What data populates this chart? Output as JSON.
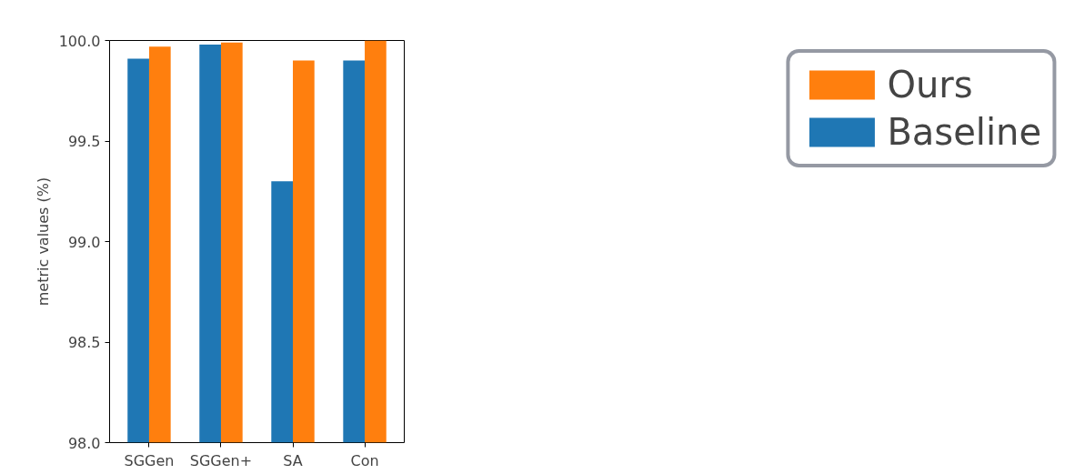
{
  "chart_data": {
    "type": "bar",
    "ylabel": "metric values (%)",
    "categories": [
      "SGGen",
      "SGGen+",
      "SA",
      "Con"
    ],
    "series": [
      {
        "name": "Baseline",
        "color": "#1f77b4",
        "values": [
          99.91,
          99.98,
          99.3,
          99.9
        ]
      },
      {
        "name": "Ours",
        "color": "#ff7f0e",
        "values": [
          99.97,
          99.99,
          99.9,
          100.0
        ]
      }
    ],
    "ylim": [
      98.0,
      100.0
    ],
    "yticks": [
      {
        "value": 98.0,
        "label": "98.0"
      },
      {
        "value": 98.5,
        "label": "98.5"
      },
      {
        "value": 99.0,
        "label": "99.0"
      },
      {
        "value": 99.5,
        "label": "99.5"
      },
      {
        "value": 100.0,
        "label": "100.0"
      }
    ],
    "grid": false,
    "legend": "top right"
  }
}
